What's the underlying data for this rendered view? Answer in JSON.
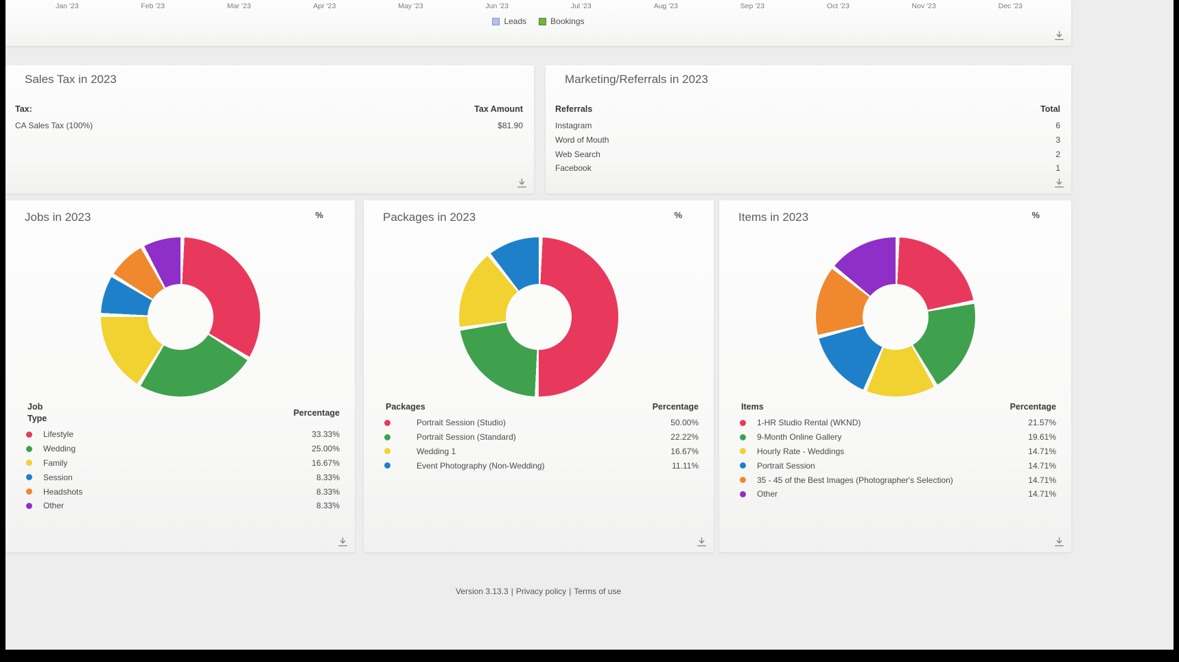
{
  "icons": {
    "percent": "%"
  },
  "leads_chart": {
    "months": [
      "Jan '23",
      "Feb '23",
      "Mar '23",
      "Apr '23",
      "May '23",
      "Jun '23",
      "Jul '23",
      "Aug '23",
      "Sep '23",
      "Oct '23",
      "Nov '23",
      "Dec '23"
    ],
    "legend": [
      {
        "label": "Leads",
        "fill": "#b7c0e9",
        "border": "#8591d5"
      },
      {
        "label": "Bookings",
        "fill": "#72b13e",
        "border": "#55882c"
      }
    ]
  },
  "sales_tax": {
    "title": "Sales Tax in 2023",
    "columns": [
      "Tax:",
      "Tax Amount"
    ],
    "rows": [
      [
        "CA Sales Tax (100%)",
        "$81.90"
      ]
    ]
  },
  "marketing": {
    "title": "Marketing/Referrals in 2023",
    "columns": [
      "Referrals",
      "Total"
    ],
    "rows": [
      [
        "Instagram",
        "6"
      ],
      [
        "Word of Mouth",
        "3"
      ],
      [
        "Web Search",
        "2"
      ],
      [
        "Facebook",
        "1"
      ]
    ]
  },
  "donut_cards": [
    {
      "title": "Jobs in 2023",
      "columns": [
        "Job Type",
        "Percentage"
      ],
      "rows": [
        {
          "label": "Lifestyle",
          "value": 33.33,
          "display": "33.33%",
          "color": "#e8395c"
        },
        {
          "label": "Wedding",
          "value": 25.0,
          "display": "25.00%",
          "color": "#3fa14d"
        },
        {
          "label": "Family",
          "value": 16.67,
          "display": "16.67%",
          "color": "#f2d231"
        },
        {
          "label": "Session",
          "value": 8.33,
          "display": "8.33%",
          "color": "#1f80ca"
        },
        {
          "label": "Headshots",
          "value": 8.33,
          "display": "8.33%",
          "color": "#f0882d"
        },
        {
          "label": "Other",
          "value": 8.33,
          "display": "8.33%",
          "color": "#8e2fc7"
        }
      ]
    },
    {
      "title": "Packages in 2023",
      "columns": [
        "Packages",
        "Percentage"
      ],
      "rows": [
        {
          "label": "Portrait Session (Studio)",
          "value": 50.0,
          "display": "50.00%",
          "color": "#e8395c"
        },
        {
          "label": "Portrait Session (Standard)",
          "value": 22.22,
          "display": "22.22%",
          "color": "#3fa14d"
        },
        {
          "label": "Wedding 1",
          "value": 16.67,
          "display": "16.67%",
          "color": "#f2d231"
        },
        {
          "label": "Event Photography (Non-Wedding)",
          "value": 11.11,
          "display": "11.11%",
          "color": "#1f80ca"
        }
      ]
    },
    {
      "title": "Items in 2023",
      "columns": [
        "Items",
        "Percentage"
      ],
      "rows": [
        {
          "label": "1-HR Studio Rental (WKND)",
          "value": 21.57,
          "display": "21.57%",
          "color": "#e8395c"
        },
        {
          "label": "9-Month Online Gallery",
          "value": 19.61,
          "display": "19.61%",
          "color": "#3fa14d"
        },
        {
          "label": "Hourly Rate - Weddings",
          "value": 14.71,
          "display": "14.71%",
          "color": "#f2d231"
        },
        {
          "label": "Portrait Session",
          "value": 14.71,
          "display": "14.71%",
          "color": "#1f80ca"
        },
        {
          "label": "35 - 45 of the Best Images (Photographer's Selection)",
          "value": 14.71,
          "display": "14.71%",
          "color": "#f0882d"
        },
        {
          "label": "Other",
          "value": 14.71,
          "display": "14.71%",
          "color": "#8e2fc7"
        }
      ]
    }
  ],
  "footer": {
    "version": "Version 3.13.3",
    "separator": "|",
    "privacy": "Privacy policy",
    "terms": "Terms of use"
  },
  "chart_data": [
    {
      "type": "bar",
      "note": "chart body scrolled out of view; only x-axis labels and legend visible",
      "categories": [
        "Jan '23",
        "Feb '23",
        "Mar '23",
        "Apr '23",
        "May '23",
        "Jun '23",
        "Jul '23",
        "Aug '23",
        "Sep '23",
        "Oct '23",
        "Nov '23",
        "Dec '23"
      ],
      "series": [
        {
          "name": "Leads"
        },
        {
          "name": "Bookings"
        }
      ],
      "legend_position": "bottom"
    },
    {
      "type": "pie",
      "title": "Jobs in 2023",
      "labels": [
        "Lifestyle",
        "Wedding",
        "Family",
        "Session",
        "Headshots",
        "Other"
      ],
      "values": [
        33.33,
        25.0,
        16.67,
        8.33,
        8.33,
        8.33
      ],
      "colors": [
        "#e8395c",
        "#3fa14d",
        "#f2d231",
        "#1f80ca",
        "#f0882d",
        "#8e2fc7"
      ],
      "donut": true
    },
    {
      "type": "pie",
      "title": "Packages in 2023",
      "labels": [
        "Portrait Session (Studio)",
        "Portrait Session (Standard)",
        "Wedding 1",
        "Event Photography (Non-Wedding)"
      ],
      "values": [
        50.0,
        22.22,
        16.67,
        11.11
      ],
      "colors": [
        "#e8395c",
        "#3fa14d",
        "#f2d231",
        "#1f80ca"
      ],
      "donut": true
    },
    {
      "type": "pie",
      "title": "Items in 2023",
      "labels": [
        "1-HR Studio Rental (WKND)",
        "9-Month Online Gallery",
        "Hourly Rate - Weddings",
        "Portrait Session",
        "35 - 45 of the Best Images (Photographer's Selection)",
        "Other"
      ],
      "values": [
        21.57,
        19.61,
        14.71,
        14.71,
        14.71,
        14.71
      ],
      "colors": [
        "#e8395c",
        "#3fa14d",
        "#f2d231",
        "#1f80ca",
        "#f0882d",
        "#8e2fc7"
      ],
      "donut": true
    }
  ]
}
